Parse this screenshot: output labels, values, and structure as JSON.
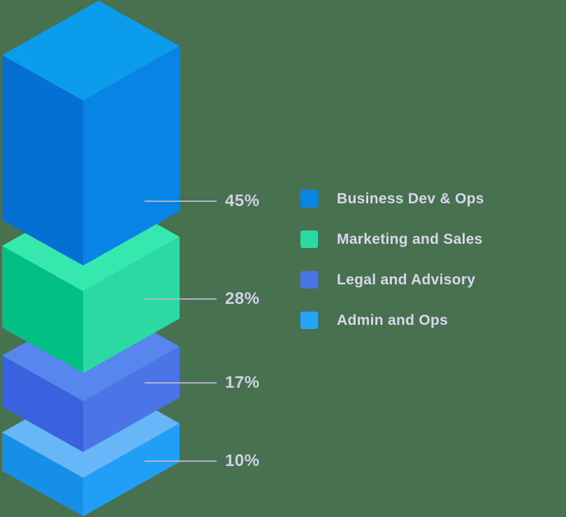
{
  "background_color": "#48714F",
  "chart_data": {
    "type": "bar",
    "subtype": "isometric-stacked-bar",
    "title": "",
    "unit": "%",
    "categories": [
      "Business Dev & Ops",
      "Marketing and Sales",
      "Legal and Advisory",
      "Admin and Ops"
    ],
    "values": [
      45,
      28,
      17,
      10
    ],
    "legend_position": "right",
    "annotation_color": "#B3B1D3",
    "percent_text_color": "#D3D0E6",
    "legend_text_color": "#DAD7EC",
    "segments": [
      {
        "label": "Business Dev & Ops",
        "value": 45,
        "pct_label": "45%",
        "colors": {
          "top": "#0B9CEB",
          "left": "#0470D3",
          "right": "#0883E6"
        },
        "legend_color": "#0883E6"
      },
      {
        "label": "Marketing and Sales",
        "value": 28,
        "pct_label": "28%",
        "colors": {
          "top": "#36E7AE",
          "left": "#01BF85",
          "right": "#2BD9A2"
        },
        "legend_color": "#2BD9A2"
      },
      {
        "label": "Legal and Advisory",
        "value": 17,
        "pct_label": "17%",
        "colors": {
          "top": "#5686EE",
          "left": "#3A62DE",
          "right": "#4B75E7"
        },
        "legend_color": "#4B75E7"
      },
      {
        "label": "Admin and Ops",
        "value": 10,
        "pct_label": "10%",
        "colors": {
          "top": "#67B7F8",
          "left": "#168FE9",
          "right": "#219EF5"
        },
        "legend_color": "#29A3F5"
      }
    ]
  }
}
